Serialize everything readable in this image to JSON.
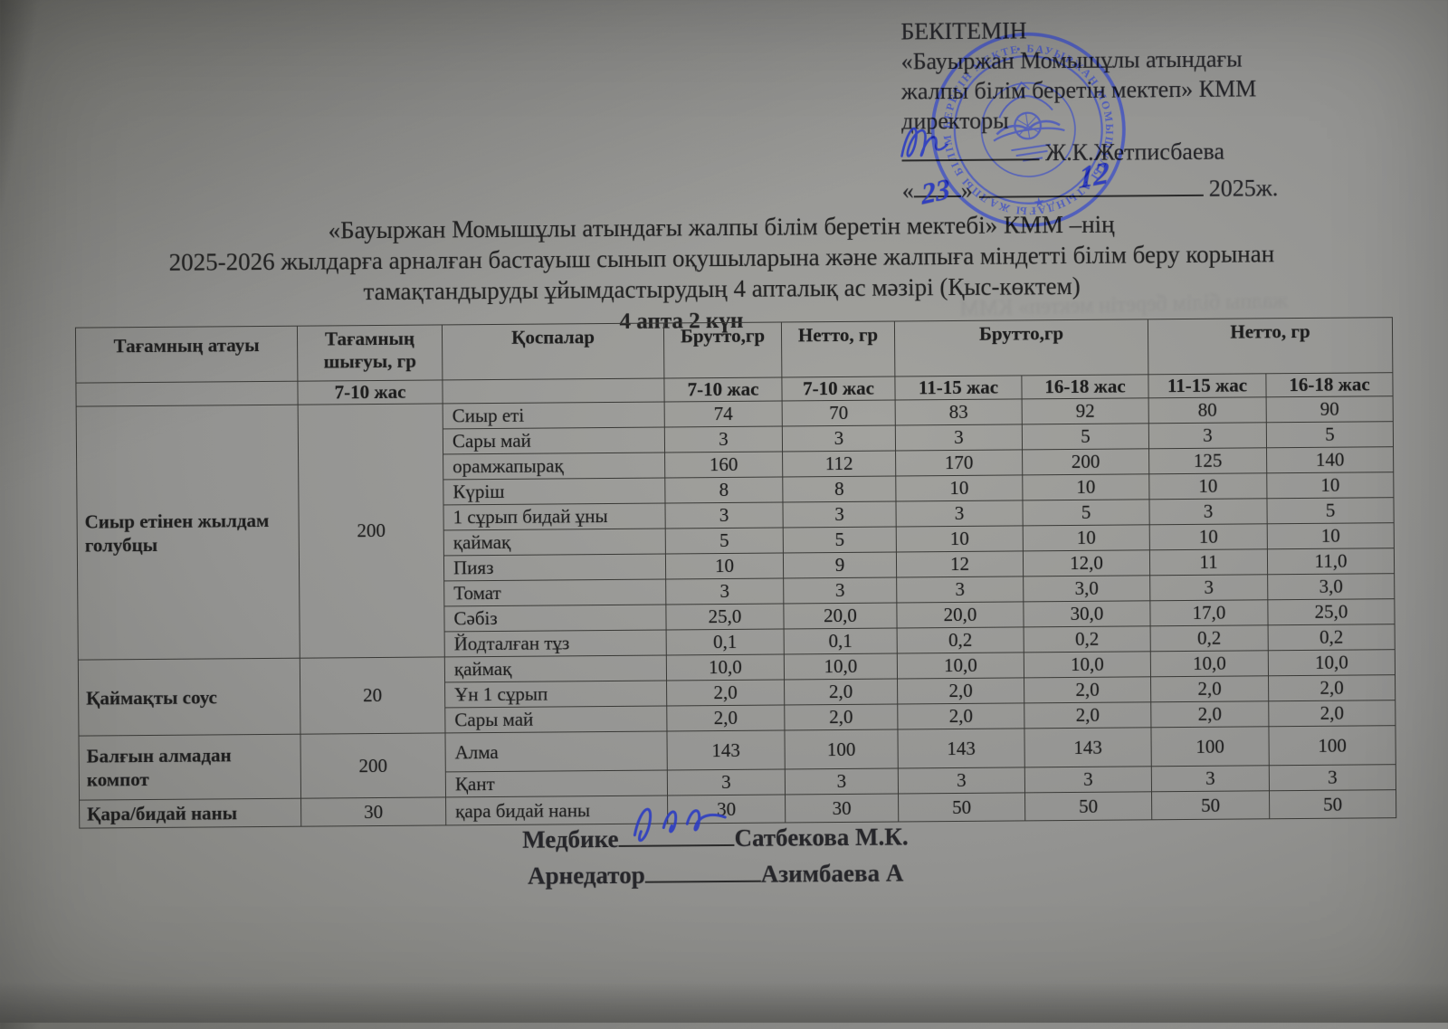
{
  "approval": {
    "title": "БЕКІТЕМІН",
    "org_line1": "«Бауыржан Момышұлы атындағы",
    "org_line2": "жалпы білім беретін мектеп» КММ",
    "role": "директоры",
    "director_name": "Ж.К.Жетписбаева",
    "quote_open": "«",
    "quote_close": "»",
    "hand_day": "23",
    "hand_month": "12",
    "year": "2025ж."
  },
  "stamp": {
    "ring_text": "• БАУЫРЖАН МОМЫШҰЛЫ АТЫНДАҒЫ ЖАЛПЫ БІЛІМ БЕРЕТІН МЕКТЕП • КММ",
    "ink_color": "#3a4cc8"
  },
  "document_title": {
    "line1": "«Бауыржан Момышұлы атындағы жалпы білім беретін мектебі» КММ –нің",
    "line2": "2025-2026 жылдарға арналған бастауыш сынып оқушыларына және жалпыға міндетті білім беру корынан",
    "line3": "тамақтандыруды ұйымдастырудың 4 апталық ас мәзірі (Қыс-көктем)",
    "line4": "4 апта  2 күн"
  },
  "table": {
    "header": {
      "col_dish": "Тағамның атауы",
      "col_output": "Тағамның шығуы, гр",
      "col_additives": "Қоспалар",
      "col_brutto1": "Брутто,гр",
      "col_netto1": "Нетто, гр",
      "col_brutto2": "Брутто,гр",
      "col_netto2": "Нетто, гр",
      "age_7_10": "7-10 жас",
      "age_11_15": "11-15 жас",
      "age_16_18": "16-18 жас"
    },
    "dishes": [
      {
        "name": "Сиыр етінен жылдам голубцы",
        "output": "200",
        "rows": [
          {
            "ingredient": "Сиыр еті",
            "values": [
              "74",
              "70",
              "83",
              "92",
              "80",
              "90"
            ]
          },
          {
            "ingredient": "Сары май",
            "values": [
              "3",
              "3",
              "3",
              "5",
              "3",
              "5"
            ]
          },
          {
            "ingredient": "орамжапырақ",
            "values": [
              "160",
              "112",
              "170",
              "200",
              "125",
              "140"
            ]
          },
          {
            "ingredient": "Күріш",
            "values": [
              "8",
              "8",
              "10",
              "10",
              "10",
              "10"
            ]
          },
          {
            "ingredient": "1 сұрып бидай ұны",
            "values": [
              "3",
              "3",
              "3",
              "5",
              "3",
              "5"
            ]
          },
          {
            "ingredient": "қаймақ",
            "values": [
              "5",
              "5",
              "10",
              "10",
              "10",
              "10"
            ]
          },
          {
            "ingredient": "Пияз",
            "values": [
              "10",
              "9",
              "12",
              "12,0",
              "11",
              "11,0"
            ]
          },
          {
            "ingredient": "Томат",
            "values": [
              "3",
              "3",
              "3",
              "3,0",
              "3",
              "3,0"
            ]
          },
          {
            "ingredient": "Сәбіз",
            "values": [
              "25,0",
              "20,0",
              "20,0",
              "30,0",
              "17,0",
              "25,0"
            ]
          },
          {
            "ingredient": "Йодталған тұз",
            "values": [
              "0,1",
              "0,1",
              "0,2",
              "0,2",
              "0,2",
              "0,2"
            ]
          }
        ]
      },
      {
        "name": "Қаймақты соус",
        "output": "20",
        "rows": [
          {
            "ingredient": "қаймақ",
            "values": [
              "10,0",
              "10,0",
              "10,0",
              "10,0",
              "10,0",
              "10,0"
            ]
          },
          {
            "ingredient": "Ұн 1 сұрып",
            "values": [
              "2,0",
              "2,0",
              "2,0",
              "2,0",
              "2,0",
              "2,0"
            ]
          },
          {
            "ingredient": "Сары май",
            "values": [
              "2,0",
              "2,0",
              "2,0",
              "2,0",
              "2,0",
              "2,0"
            ]
          }
        ]
      },
      {
        "name": "Балғын алмадан компот",
        "output": "200",
        "rows": [
          {
            "ingredient": "Алма",
            "values": [
              "143",
              "100",
              "143",
              "143",
              "100",
              "100"
            ]
          },
          {
            "ingredient": "Қант",
            "values": [
              "3",
              "3",
              "3",
              "3",
              "3",
              "3"
            ]
          }
        ]
      },
      {
        "name": "Қара/бидай наны",
        "output": "30",
        "rows": [
          {
            "ingredient": "қара бидай наны",
            "values": [
              "30",
              "30",
              "50",
              "50",
              "50",
              "50"
            ]
          }
        ]
      }
    ]
  },
  "signatures": {
    "medbike_label": "Медбике",
    "medbike_name": "Сатбекова М.К.",
    "arnedator_label": "Арнедатор",
    "arnedator_name": "Азимбаева А"
  },
  "colors": {
    "ink_blue": "#2b3cc2",
    "paper_gray": "#8f8f8b",
    "text": "#242424"
  }
}
